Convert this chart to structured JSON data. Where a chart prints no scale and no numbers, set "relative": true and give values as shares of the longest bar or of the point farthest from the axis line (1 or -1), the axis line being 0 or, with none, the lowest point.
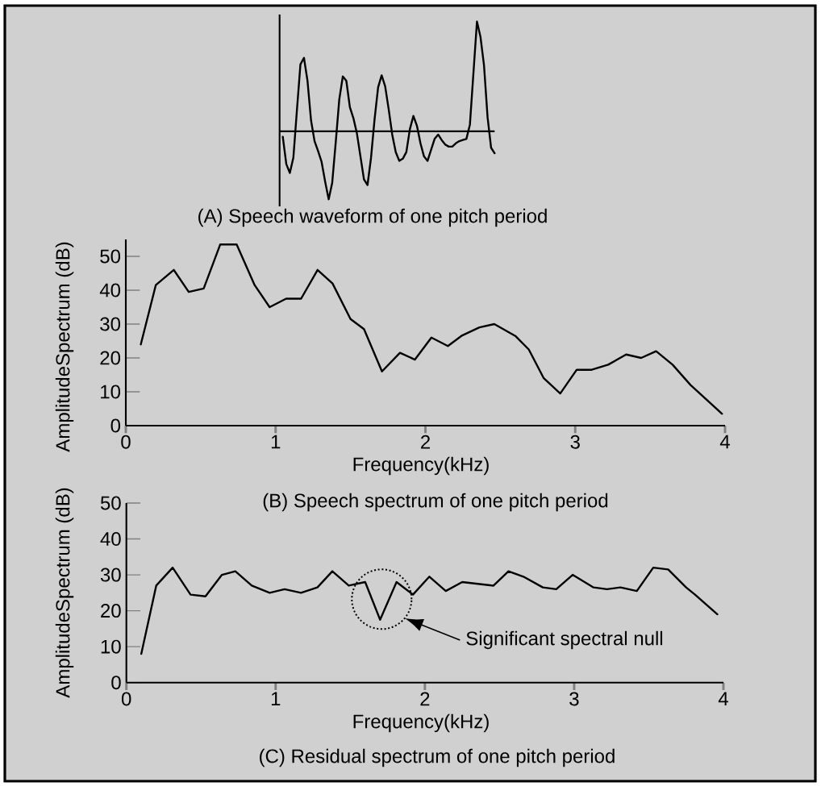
{
  "chart_data": [
    {
      "type": "line",
      "title": "(A) Speech waveform of one pitch period",
      "relative": true,
      "color": "#000000",
      "categories": [
        null,
        null,
        null,
        null,
        null,
        null,
        null,
        null,
        null,
        null,
        null,
        null,
        null,
        null,
        null,
        null,
        null,
        null,
        null,
        null,
        null,
        null,
        null,
        null,
        null,
        null,
        null,
        null,
        null,
        null,
        null,
        null,
        null,
        null,
        null,
        null,
        null,
        null,
        null,
        null,
        null,
        null,
        null,
        null,
        null,
        null,
        null,
        null,
        null,
        null,
        null,
        null,
        null,
        null,
        null,
        null,
        null,
        null,
        null,
        null,
        null
      ],
      "values": [
        -0.05,
        -0.3,
        -0.38,
        -0.24,
        0.19,
        0.61,
        0.67,
        0.46,
        0.1,
        -0.09,
        -0.18,
        -0.28,
        -0.46,
        -0.62,
        -0.47,
        -0.1,
        0.29,
        0.5,
        0.46,
        0.22,
        0.12,
        -0.02,
        -0.23,
        -0.44,
        -0.49,
        -0.24,
        0.11,
        0.4,
        0.51,
        0.41,
        0.2,
        -0.03,
        -0.19,
        -0.27,
        -0.25,
        -0.19,
        0.02,
        0.14,
        0.05,
        -0.11,
        -0.23,
        -0.27,
        -0.17,
        -0.07,
        -0.03,
        -0.08,
        -0.12,
        -0.14,
        -0.14,
        -0.11,
        -0.09,
        -0.08,
        -0.07,
        0.06,
        0.53,
        1,
        0.86,
        0.6,
        0.13,
        -0.15,
        -0.2
      ]
    },
    {
      "type": "line",
      "title": "(B) Speech spectrum of one pitch period",
      "xlabel": "Frequency(kHz)",
      "ylabel": "AmplitudeSpectrum (dB)",
      "color": "#000000",
      "x": [
        0.1,
        0.2,
        0.32,
        0.42,
        0.52,
        0.63,
        0.74,
        0.86,
        0.96,
        1.07,
        1.17,
        1.28,
        1.38,
        1.5,
        1.59,
        1.71,
        1.83,
        1.93,
        2.04,
        2.15,
        2.24,
        2.36,
        2.46,
        2.6,
        2.69,
        2.79,
        2.9,
        3.01,
        3.11,
        3.22,
        3.34,
        3.44,
        3.54,
        3.65,
        3.77,
        3.98
      ],
      "values": [
        24,
        41.5,
        46,
        39.5,
        40.5,
        53.5,
        53.5,
        41.5,
        35,
        37.5,
        37.5,
        46,
        42,
        31.5,
        28.5,
        16,
        21.5,
        19.5,
        26,
        23.5,
        26.5,
        29,
        30,
        26.5,
        22.5,
        14,
        9.5,
        16.5,
        16.5,
        18,
        21,
        20,
        22,
        18,
        12,
        3.5
      ],
      "xlim": [
        0,
        4
      ],
      "xticks": [
        0,
        1,
        2,
        3,
        4
      ],
      "ylim": [
        0,
        55
      ],
      "yticks": [
        0,
        10,
        20,
        30,
        40,
        50
      ]
    },
    {
      "type": "line",
      "title": "(C) Residual spectrum of one pitch period",
      "xlabel": "Frequency(kHz)",
      "ylabel": "AmplitudeSpectrum (dB)",
      "color": "#000000",
      "x": [
        0.1,
        0.2,
        0.31,
        0.43,
        0.53,
        0.64,
        0.73,
        0.84,
        0.96,
        1.06,
        1.17,
        1.28,
        1.38,
        1.49,
        1.6,
        1.7,
        1.81,
        1.92,
        2.03,
        2.14,
        2.25,
        2.46,
        2.56,
        2.66,
        2.79,
        2.88,
        2.99,
        3.13,
        3.22,
        3.31,
        3.42,
        3.53,
        3.63,
        3.75,
        3.81,
        3.96
      ],
      "values": [
        8,
        27,
        32,
        24.5,
        24,
        30,
        31,
        27,
        25,
        26,
        25,
        26.5,
        31,
        27,
        28,
        17.5,
        28,
        24.5,
        29.5,
        25.5,
        28,
        27,
        31,
        29.5,
        26.5,
        26,
        30,
        26.5,
        26,
        26.5,
        25.5,
        32,
        31.5,
        26.5,
        24.5,
        19
      ],
      "xlim": [
        0,
        4
      ],
      "xticks": [
        0,
        1,
        2,
        3,
        4
      ],
      "ylim": [
        0,
        50
      ],
      "yticks": [
        0,
        10,
        20,
        30,
        40,
        50
      ],
      "annotations": [
        "Significant spectral null"
      ]
    }
  ]
}
